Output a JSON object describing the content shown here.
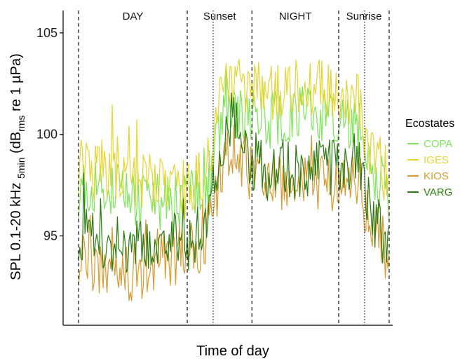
{
  "chart_data": {
    "type": "line",
    "title": "",
    "xlabel": "Time of day",
    "ylabel": {
      "prefix": "SPL 0.1-20 kHz",
      "sub1": "5min",
      "mid": "(dB",
      "sub2": "rms",
      "suffix": "re 1 µPa)"
    },
    "x_range": [
      0,
      240
    ],
    "ylim": [
      90.6,
      106.1
    ],
    "y_ticks": [
      95,
      100,
      105
    ],
    "grid": false,
    "periods": [
      {
        "label": "DAY",
        "start": 0,
        "end": 84
      },
      {
        "label": "Sunset",
        "start": 84,
        "end": 134
      },
      {
        "label": "NIGHT",
        "start": 134,
        "end": 201
      },
      {
        "label": "Sunrise",
        "start": 201,
        "end": 240
      }
    ],
    "dashed_lines": [
      0,
      84,
      134,
      201,
      240
    ],
    "dotted_lines": [
      104,
      221
    ],
    "legend": {
      "title": "Ecostates",
      "placement": "right"
    },
    "series": [
      {
        "name": "COPA",
        "color": "#7de65a",
        "profile": [
          [
            0,
            97.3
          ],
          [
            20,
            97.5
          ],
          [
            45,
            96.8
          ],
          [
            70,
            96.6
          ],
          [
            84,
            96.8
          ],
          [
            96,
            97.1
          ],
          [
            104,
            98.6
          ],
          [
            110,
            100.3
          ],
          [
            118,
            101.1
          ],
          [
            134,
            100.8
          ],
          [
            150,
            100.7
          ],
          [
            170,
            100.9
          ],
          [
            190,
            100.9
          ],
          [
            201,
            100.9
          ],
          [
            210,
            100.6
          ],
          [
            218,
            100.4
          ],
          [
            222,
            98.6
          ],
          [
            230,
            98.1
          ],
          [
            240,
            96.6
          ]
        ]
      },
      {
        "name": "IGES",
        "color": "#e6d534",
        "profile": [
          [
            0,
            98.5
          ],
          [
            20,
            98.4
          ],
          [
            45,
            97.8
          ],
          [
            70,
            97.3
          ],
          [
            84,
            97.6
          ],
          [
            96,
            98.0
          ],
          [
            104,
            99.6
          ],
          [
            110,
            101.6
          ],
          [
            118,
            102.6
          ],
          [
            134,
            102.3
          ],
          [
            150,
            102.0
          ],
          [
            170,
            102.3
          ],
          [
            190,
            102.3
          ],
          [
            201,
            102.2
          ],
          [
            210,
            101.9
          ],
          [
            218,
            101.6
          ],
          [
            222,
            99.6
          ],
          [
            230,
            99.1
          ],
          [
            240,
            97.6
          ]
        ]
      },
      {
        "name": "KIOS",
        "color": "#d99b32",
        "profile": [
          [
            0,
            94.0
          ],
          [
            20,
            93.4
          ],
          [
            45,
            93.2
          ],
          [
            70,
            93.9
          ],
          [
            84,
            94.2
          ],
          [
            96,
            94.5
          ],
          [
            104,
            96.3
          ],
          [
            110,
            98.1
          ],
          [
            118,
            99.3
          ],
          [
            134,
            97.9
          ],
          [
            150,
            97.5
          ],
          [
            170,
            97.4
          ],
          [
            190,
            97.5
          ],
          [
            201,
            97.7
          ],
          [
            210,
            97.5
          ],
          [
            218,
            97.4
          ],
          [
            222,
            96.1
          ],
          [
            230,
            95.6
          ],
          [
            240,
            93.6
          ]
        ]
      },
      {
        "name": "VARG",
        "color": "#2e7d12",
        "profile": [
          [
            0,
            95.2
          ],
          [
            20,
            94.7
          ],
          [
            45,
            94.3
          ],
          [
            70,
            94.8
          ],
          [
            84,
            95.0
          ],
          [
            96,
            95.3
          ],
          [
            104,
            97.2
          ],
          [
            110,
            99.3
          ],
          [
            118,
            100.8
          ],
          [
            134,
            98.7
          ],
          [
            150,
            98.4
          ],
          [
            170,
            98.2
          ],
          [
            190,
            98.3
          ],
          [
            201,
            98.5
          ],
          [
            210,
            98.4
          ],
          [
            218,
            98.3
          ],
          [
            222,
            96.6
          ],
          [
            230,
            96.0
          ],
          [
            240,
            94.1
          ]
        ]
      }
    ]
  }
}
